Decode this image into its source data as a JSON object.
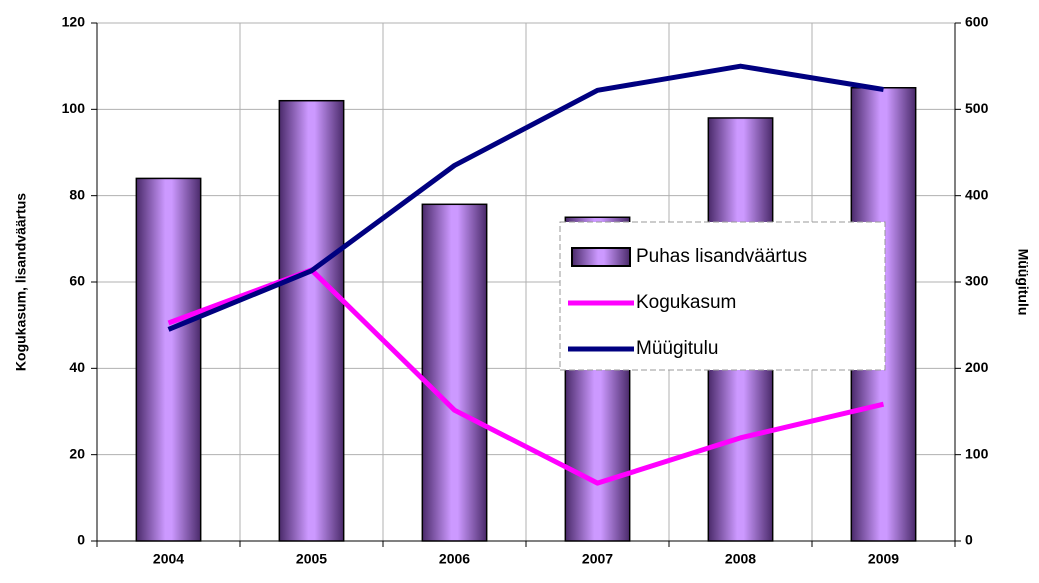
{
  "chart_data": {
    "type": "bar",
    "categories": [
      "2004",
      "2005",
      "2006",
      "2007",
      "2008",
      "2009"
    ],
    "series": [
      {
        "name": "Puhas lisandväärtus",
        "type": "bar",
        "color": "#cc99ff",
        "values": [
          84,
          102,
          78,
          75,
          98,
          105
        ]
      },
      {
        "name": "Kogukasum",
        "type": "line",
        "color": "#ff00ff",
        "values": [
          50.5,
          62.8,
          30.3,
          13.4,
          23.9,
          31.7
        ]
      },
      {
        "name": "Müügitulu",
        "type": "line",
        "color": "#000080",
        "axis": "y2",
        "values": [
          245,
          313,
          435,
          522,
          550,
          523
        ]
      }
    ],
    "ylabel": "Kogukasum, lisandväärtus",
    "y2label": "Müügitulu",
    "ylim": [
      0,
      120
    ],
    "yticks": [
      0,
      20,
      40,
      60,
      80,
      100,
      120
    ],
    "y2lim": [
      0,
      600
    ],
    "y2ticks": [
      0,
      100,
      200,
      300,
      400,
      500,
      600
    ],
    "grid": true,
    "legend": "right"
  }
}
